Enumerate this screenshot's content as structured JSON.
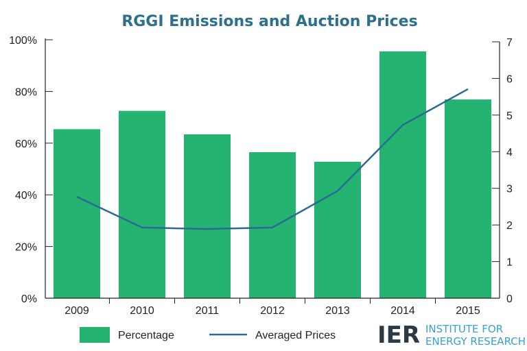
{
  "chart_data": {
    "type": "bar",
    "title": "RGGI Emissions and Auction Prices",
    "categories": [
      "2009",
      "2010",
      "2011",
      "2012",
      "2013",
      "2014",
      "2015"
    ],
    "series": [
      {
        "name": "Percentage",
        "type": "bar",
        "axis": "left",
        "color": "#25b372",
        "values": [
          65.4,
          72.5,
          63.4,
          56.5,
          52.8,
          95.5,
          76.9
        ]
      },
      {
        "name": "Averaged Prices",
        "type": "line",
        "axis": "right",
        "color": "#2a6a95",
        "values": [
          2.77,
          1.93,
          1.89,
          1.93,
          2.93,
          4.73,
          5.71
        ]
      }
    ],
    "left_axis": {
      "ylim": [
        0,
        100
      ],
      "ticks": [
        0,
        20,
        40,
        60,
        80,
        100
      ],
      "tick_labels": [
        "0%",
        "20%",
        "40%",
        "60%",
        "80%",
        "100%"
      ]
    },
    "right_axis": {
      "ylim": [
        0,
        7
      ],
      "ticks": [
        0,
        1,
        2,
        3,
        4,
        5,
        6,
        7
      ],
      "tick_labels": [
        "0",
        "1",
        "2",
        "3",
        "4",
        "5",
        "6",
        "7"
      ]
    },
    "xlabel": "",
    "ylabel": "",
    "grid": false,
    "legend": {
      "placement": "bottom",
      "entries": [
        "Percentage",
        "Averaged Prices"
      ]
    }
  },
  "logo": {
    "mark": "IER",
    "line1": "INSTITUTE FOR",
    "line2": "ENERGY RESEARCH"
  }
}
